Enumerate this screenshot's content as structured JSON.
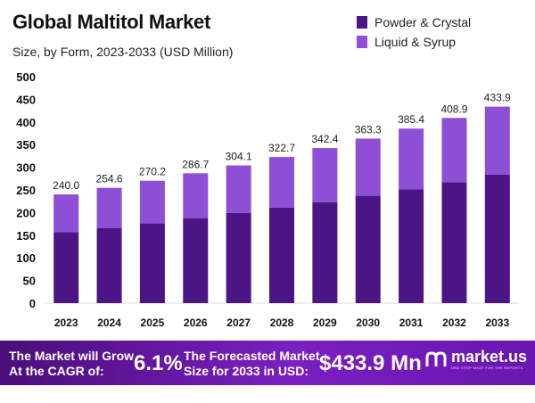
{
  "colors": {
    "powder_crystal": "#4b1585",
    "liquid_syrup": "#8f4ed6",
    "footer_bg": "#6a16b0"
  },
  "chart_data": {
    "type": "stacked-bar",
    "title": "Global Maltitol Market",
    "subtitle": "Size, by Form, 2023-2033 (USD Million)",
    "categories": [
      "2023",
      "2024",
      "2025",
      "2026",
      "2027",
      "2028",
      "2029",
      "2030",
      "2031",
      "2032",
      "2033"
    ],
    "series": [
      {
        "name": "Powder & Crystal",
        "values": [
          157,
          166,
          176,
          187,
          199,
          211,
          223,
          237,
          251,
          267,
          284
        ]
      },
      {
        "name": "Liquid & Syrup",
        "values": [
          83.0,
          88.6,
          94.2,
          99.7,
          105.1,
          111.7,
          119.4,
          126.3,
          134.4,
          141.9,
          149.9
        ]
      }
    ],
    "totals": [
      "240.0",
      "254.6",
      "270.2",
      "286.7",
      "304.1",
      "322.7",
      "342.4",
      "363.3",
      "385.4",
      "408.9",
      "433.9"
    ],
    "ylim": [
      0,
      500
    ],
    "yticks": [
      0,
      50,
      100,
      150,
      200,
      250,
      300,
      350,
      400,
      450,
      500
    ],
    "legend": "top-right"
  },
  "footer": {
    "cagr_label_line1": "The Market will Grow",
    "cagr_label_line2": "At the CAGR of:",
    "cagr_value": "6.1%",
    "forecast_label_line1": "The Forecasted Market",
    "forecast_label_line2": "Size for 2033 in USD:",
    "forecast_value": "$433.9 Mn",
    "brand_icon": "market-us-logo-icon",
    "brand_name": "market.us",
    "brand_tagline": "ONE STOP SHOP FOR THE REPORTS"
  }
}
